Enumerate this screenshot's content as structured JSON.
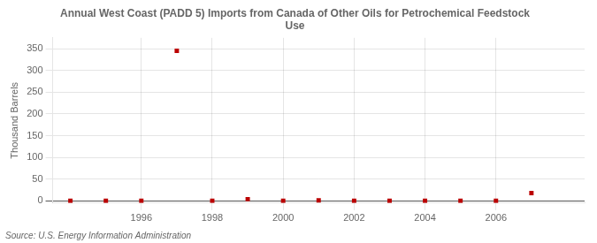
{
  "chart_data": {
    "type": "scatter",
    "title": "Annual West Coast (PADD 5) Imports from Canada of Other Oils for Petrochemical Feedstock\nUse",
    "ylabel": "Thousand Barrels",
    "annotation": "Source: U.S. Energy Information Administration",
    "x": [
      1994,
      1995,
      1996,
      1997,
      1998,
      1999,
      2000,
      2001,
      2002,
      2003,
      2004,
      2005,
      2006,
      2007
    ],
    "values": [
      0,
      0,
      0,
      345,
      0,
      4,
      0,
      1,
      0,
      0,
      0,
      0,
      0,
      18
    ],
    "color": "#bb0000",
    "marker": "square",
    "xlim": [
      1993.5,
      2008.5
    ],
    "ylim": [
      -5,
      375
    ],
    "xticks": [
      1996,
      1998,
      2000,
      2002,
      2004,
      2006
    ],
    "yticks": [
      0,
      50,
      100,
      150,
      200,
      250,
      300,
      350
    ],
    "grid": true
  }
}
